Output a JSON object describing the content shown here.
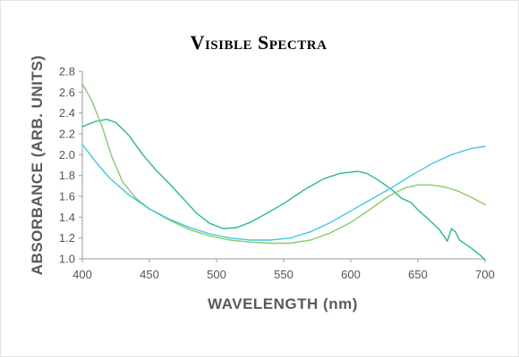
{
  "chart_data": {
    "type": "line",
    "title": "Visible Spectra",
    "xlabel": "WAVELENGTH (nm)",
    "ylabel": "ABSORBANCE (ARB. UNITS)",
    "xlim": [
      400,
      700
    ],
    "ylim": [
      1.0,
      2.8
    ],
    "xticks": [
      400,
      450,
      500,
      550,
      600,
      650,
      700
    ],
    "yticks": [
      "1.0",
      "1.2",
      "1.4",
      "1.6",
      "1.8",
      "2.0",
      "2.2",
      "2.4",
      "2.6",
      "2.8"
    ],
    "grid": false,
    "legend": "none",
    "colors": {
      "axis": "#9a9a9a",
      "tick_text": "#555555",
      "axis_label": "#5a5a5a",
      "title": "#000000"
    },
    "series": [
      {
        "color": "#27b99a",
        "points": [
          [
            400,
            2.27
          ],
          [
            410,
            2.32
          ],
          [
            418,
            2.34
          ],
          [
            425,
            2.31
          ],
          [
            435,
            2.18
          ],
          [
            445,
            2.0
          ],
          [
            455,
            1.85
          ],
          [
            465,
            1.72
          ],
          [
            475,
            1.58
          ],
          [
            485,
            1.44
          ],
          [
            495,
            1.34
          ],
          [
            505,
            1.29
          ],
          [
            515,
            1.3
          ],
          [
            525,
            1.35
          ],
          [
            535,
            1.42
          ],
          [
            550,
            1.53
          ],
          [
            565,
            1.66
          ],
          [
            580,
            1.77
          ],
          [
            592,
            1.82
          ],
          [
            605,
            1.84
          ],
          [
            612,
            1.82
          ],
          [
            620,
            1.76
          ],
          [
            630,
            1.67
          ],
          [
            638,
            1.58
          ],
          [
            645,
            1.54
          ],
          [
            650,
            1.47
          ],
          [
            658,
            1.38
          ],
          [
            666,
            1.28
          ],
          [
            672,
            1.17
          ],
          [
            675,
            1.29
          ],
          [
            678,
            1.26
          ],
          [
            681,
            1.18
          ],
          [
            690,
            1.1
          ],
          [
            696,
            1.04
          ],
          [
            700,
            0.99
          ]
        ]
      },
      {
        "color": "#86cc6c",
        "points": [
          [
            400,
            2.68
          ],
          [
            407,
            2.52
          ],
          [
            415,
            2.26
          ],
          [
            422,
            1.98
          ],
          [
            430,
            1.74
          ],
          [
            440,
            1.58
          ],
          [
            450,
            1.48
          ],
          [
            465,
            1.37
          ],
          [
            480,
            1.28
          ],
          [
            495,
            1.22
          ],
          [
            510,
            1.18
          ],
          [
            525,
            1.16
          ],
          [
            540,
            1.15
          ],
          [
            555,
            1.15
          ],
          [
            570,
            1.18
          ],
          [
            585,
            1.25
          ],
          [
            600,
            1.35
          ],
          [
            615,
            1.48
          ],
          [
            628,
            1.6
          ],
          [
            640,
            1.68
          ],
          [
            650,
            1.71
          ],
          [
            660,
            1.71
          ],
          [
            670,
            1.69
          ],
          [
            680,
            1.65
          ],
          [
            690,
            1.59
          ],
          [
            700,
            1.52
          ]
        ]
      },
      {
        "color": "#41c7e5",
        "points": [
          [
            400,
            2.1
          ],
          [
            410,
            1.93
          ],
          [
            420,
            1.78
          ],
          [
            435,
            1.61
          ],
          [
            450,
            1.48
          ],
          [
            465,
            1.38
          ],
          [
            480,
            1.3
          ],
          [
            495,
            1.24
          ],
          [
            510,
            1.2
          ],
          [
            525,
            1.18
          ],
          [
            540,
            1.18
          ],
          [
            555,
            1.2
          ],
          [
            570,
            1.26
          ],
          [
            585,
            1.35
          ],
          [
            600,
            1.46
          ],
          [
            615,
            1.57
          ],
          [
            630,
            1.68
          ],
          [
            645,
            1.8
          ],
          [
            660,
            1.91
          ],
          [
            675,
            2.0
          ],
          [
            690,
            2.06
          ],
          [
            700,
            2.08
          ]
        ]
      }
    ]
  }
}
